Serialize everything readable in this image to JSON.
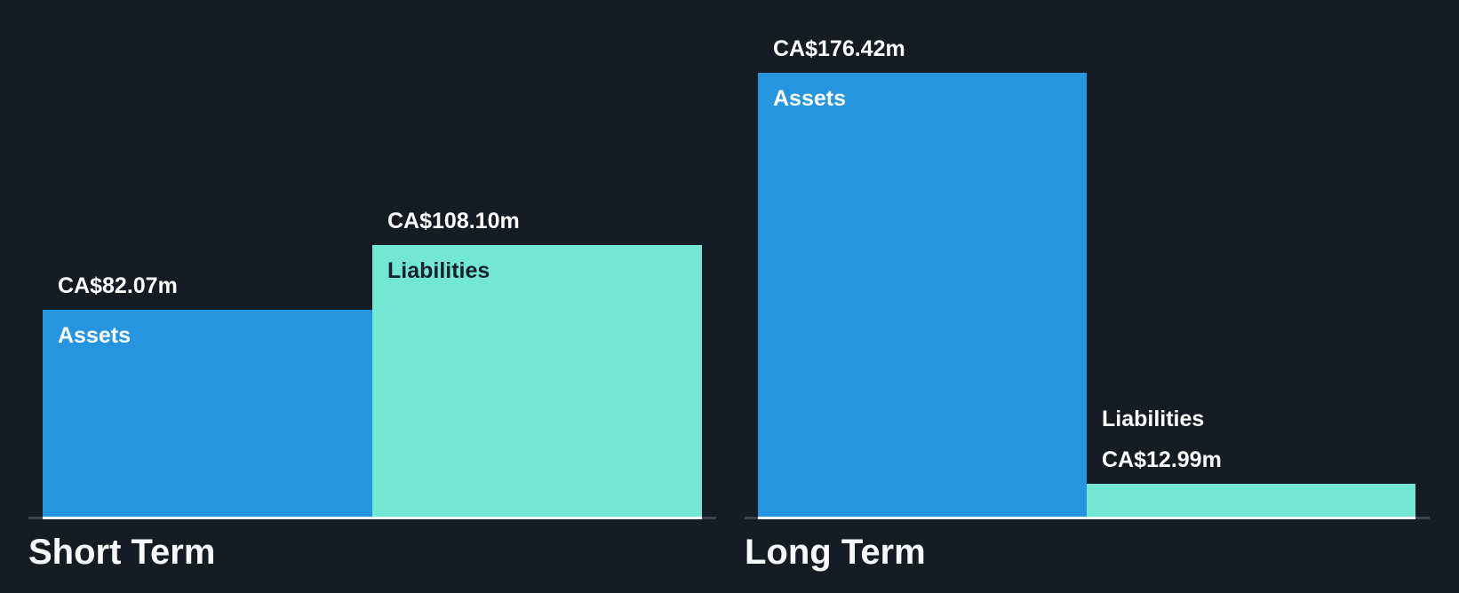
{
  "chart_data": {
    "type": "bar",
    "grid": false,
    "legend": "none",
    "currency_prefix": "CA$",
    "value_suffix": "m",
    "ylim": [
      0,
      176.42
    ],
    "groups": [
      {
        "title": "Short Term",
        "bars": [
          {
            "name": "Assets",
            "value": 82.07,
            "value_label": "CA$82.07m",
            "color_key": "assets"
          },
          {
            "name": "Liabilities",
            "value": 108.1,
            "value_label": "CA$108.10m",
            "color_key": "liabilities"
          }
        ]
      },
      {
        "title": "Long Term",
        "bars": [
          {
            "name": "Assets",
            "value": 176.42,
            "value_label": "CA$176.42m",
            "color_key": "assets"
          },
          {
            "name": "Liabilities",
            "value": 12.99,
            "value_label": "CA$12.99m",
            "color_key": "liabilities"
          }
        ]
      }
    ],
    "colors": {
      "assets": "#2694DE",
      "liabilities": "#71E7D4",
      "background": "#151C24",
      "axis_line": "#3C434E",
      "bar_baseline": "#F5F7F8",
      "value_label_text": "#FFFFFF",
      "label_on_assets": "#FFFFFF",
      "label_on_liabilities": "#18212B",
      "group_title_text": "#F7F9FA"
    }
  }
}
